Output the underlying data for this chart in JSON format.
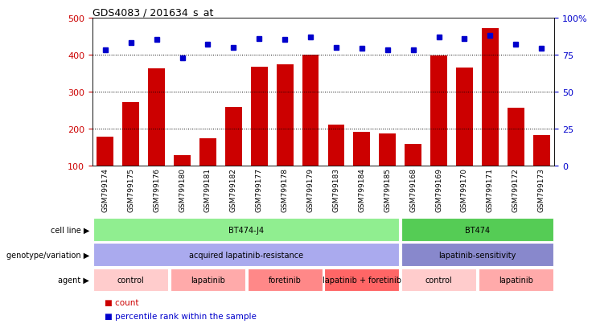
{
  "title": "GDS4083 / 201634_s_at",
  "samples": [
    "GSM799174",
    "GSM799175",
    "GSM799176",
    "GSM799180",
    "GSM799181",
    "GSM799182",
    "GSM799177",
    "GSM799178",
    "GSM799179",
    "GSM799183",
    "GSM799184",
    "GSM799185",
    "GSM799168",
    "GSM799169",
    "GSM799170",
    "GSM799171",
    "GSM799172",
    "GSM799173"
  ],
  "counts": [
    178,
    272,
    362,
    128,
    174,
    258,
    368,
    374,
    400,
    210,
    192,
    186,
    158,
    398,
    364,
    472,
    256,
    182
  ],
  "percentile_ranks": [
    78,
    83,
    85,
    73,
    82,
    80,
    86,
    85,
    87,
    80,
    79,
    78,
    78,
    87,
    86,
    88,
    82,
    79
  ],
  "ylim_left": [
    100,
    500
  ],
  "ylim_right": [
    0,
    100
  ],
  "yticks_left": [
    100,
    200,
    300,
    400,
    500
  ],
  "yticks_right": [
    0,
    25,
    50,
    75,
    100
  ],
  "ytick_labels_right": [
    "0",
    "25",
    "50",
    "75",
    "100%"
  ],
  "hlines": [
    200,
    300,
    400
  ],
  "cell_line_groups": [
    {
      "label": "BT474-J4",
      "start": 0,
      "end": 12,
      "color": "#90EE90"
    },
    {
      "label": "BT474",
      "start": 12,
      "end": 18,
      "color": "#55CC55"
    }
  ],
  "genotype_groups": [
    {
      "label": "acquired lapatinib-resistance",
      "start": 0,
      "end": 12,
      "color": "#AAAAEE"
    },
    {
      "label": "lapatinib-sensitivity",
      "start": 12,
      "end": 18,
      "color": "#8888CC"
    }
  ],
  "agent_groups": [
    {
      "label": "control",
      "start": 0,
      "end": 3,
      "color": "#FFCCCC"
    },
    {
      "label": "lapatinib",
      "start": 3,
      "end": 6,
      "color": "#FFAAAA"
    },
    {
      "label": "foretinib",
      "start": 6,
      "end": 9,
      "color": "#FF8888"
    },
    {
      "label": "lapatinib + foretinib",
      "start": 9,
      "end": 12,
      "color": "#FF6666"
    },
    {
      "label": "control",
      "start": 12,
      "end": 15,
      "color": "#FFCCCC"
    },
    {
      "label": "lapatinib",
      "start": 15,
      "end": 18,
      "color": "#FFAAAA"
    }
  ],
  "row_labels": [
    "cell line",
    "genotype/variation",
    "agent"
  ],
  "bar_color": "#CC0000",
  "dot_color": "#0000CC",
  "axis_color_left": "#CC0000",
  "axis_color_right": "#0000CC",
  "background_color": "#FFFFFF",
  "sample_label_bg": "#CCCCCC"
}
